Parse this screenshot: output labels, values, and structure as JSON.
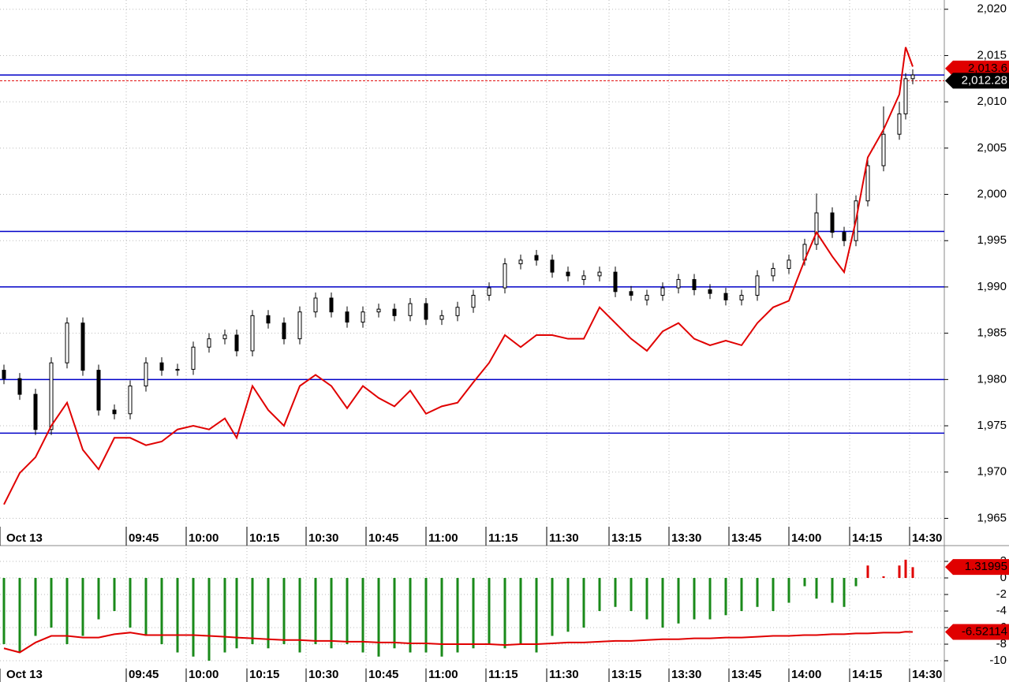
{
  "chart_data": [
    {
      "type": "candlestick",
      "x": [
        1,
        5,
        9,
        13,
        17,
        21,
        25,
        29,
        33,
        37,
        41,
        45,
        49,
        53,
        57,
        60,
        64,
        68,
        72,
        76,
        80,
        84,
        88,
        92,
        96,
        100,
        104,
        108,
        112,
        116,
        120,
        124,
        128,
        132,
        136,
        140,
        144,
        148,
        152,
        156,
        160,
        164,
        168,
        172,
        176,
        180,
        184,
        188,
        192,
        196,
        200,
        204,
        207,
        211,
        214,
        217,
        220,
        224,
        228,
        229.6,
        231.4
      ],
      "open": [
        1981.0,
        1980.1,
        1978.4,
        1974.6,
        1981.8,
        1986.1,
        1981.0,
        1976.7,
        1976.3,
        1979.3,
        1981.8,
        1981.0,
        1981.1,
        1983.5,
        1984.4,
        1984.8,
        1983.1,
        1986.9,
        1986.1,
        1984.4,
        1987.3,
        1988.8,
        1987.3,
        1986.2,
        1987.3,
        1987.6,
        1986.9,
        1988.2,
        1986.5,
        1986.9,
        1987.8,
        1989.1,
        1989.9,
        1992.5,
        1993.4,
        1992.9,
        1991.6,
        1990.8,
        1991.2,
        1991.6,
        1989.5,
        1988.6,
        1989.1,
        1989.9,
        1990.8,
        1989.7,
        1989.3,
        1988.6,
        1989.1,
        1991.2,
        1992.0,
        1992.9,
        1994.6,
        1998.0,
        1995.9,
        1995.0,
        1999.3,
        2003.1,
        2006.5,
        2008.7,
        2012.5
      ],
      "high": [
        1981.6,
        1980.7,
        1979.0,
        1982.4,
        1986.7,
        1986.7,
        1981.6,
        1977.3,
        1979.9,
        1982.4,
        1982.4,
        1981.7,
        1984.1,
        1985.0,
        1985.4,
        1985.4,
        1987.5,
        1987.5,
        1986.7,
        1987.9,
        1989.4,
        1989.4,
        1987.9,
        1987.9,
        1988.2,
        1988.2,
        1988.8,
        1988.8,
        1987.5,
        1988.4,
        1989.7,
        1990.5,
        1993.1,
        1993.5,
        1994.0,
        1993.5,
        1992.2,
        1991.8,
        1992.2,
        1992.2,
        1990.1,
        1989.7,
        1990.5,
        1991.4,
        1991.4,
        1990.3,
        1989.9,
        1989.7,
        1991.8,
        1992.6,
        1993.5,
        1995.2,
        2000.1,
        1998.6,
        1996.5,
        1999.9,
        2003.7,
        2009.5,
        2010.0,
        2013.1,
        2013.5
      ],
      "low": [
        1979.5,
        1977.8,
        1974.0,
        1974.0,
        1981.2,
        1980.4,
        1976.1,
        1975.7,
        1975.7,
        1978.7,
        1980.4,
        1980.4,
        1980.5,
        1982.9,
        1983.8,
        1982.5,
        1982.5,
        1985.5,
        1983.8,
        1983.8,
        1986.7,
        1986.7,
        1985.6,
        1985.6,
        1986.7,
        1986.3,
        1986.3,
        1985.9,
        1985.9,
        1986.3,
        1987.2,
        1988.5,
        1989.3,
        1991.9,
        1992.3,
        1991.0,
        1990.6,
        1990.2,
        1990.6,
        1988.9,
        1988.5,
        1988.0,
        1988.5,
        1989.3,
        1989.1,
        1988.7,
        1988.0,
        1988.0,
        1988.5,
        1990.6,
        1991.4,
        1992.3,
        1994.0,
        1995.3,
        1994.4,
        1994.4,
        1998.7,
        2002.5,
        2005.9,
        2008.1,
        2011.9
      ],
      "close": [
        1980.1,
        1978.4,
        1974.6,
        1981.8,
        1986.1,
        1981.0,
        1976.7,
        1976.3,
        1979.3,
        1981.8,
        1981.0,
        1981.1,
        1983.5,
        1984.4,
        1984.8,
        1983.1,
        1986.9,
        1986.1,
        1984.4,
        1987.3,
        1988.8,
        1987.3,
        1986.2,
        1987.3,
        1987.6,
        1986.9,
        1988.2,
        1986.5,
        1986.9,
        1987.8,
        1989.1,
        1989.9,
        1992.5,
        1992.9,
        1992.9,
        1991.6,
        1991.2,
        1991.2,
        1991.6,
        1989.5,
        1989.1,
        1989.1,
        1989.9,
        1990.8,
        1989.7,
        1989.3,
        1988.6,
        1989.1,
        1991.2,
        1992.0,
        1992.9,
        1994.6,
        1998.0,
        1995.9,
        1995.0,
        1999.3,
        2003.1,
        2006.5,
        2008.7,
        2012.5,
        2012.9
      ],
      "series": [
        {
          "type": "line",
          "color": "#e00000",
          "values": [
            1966.5,
            1969.9,
            1971.6,
            1975.0,
            1977.5,
            1972.4,
            1970.3,
            1973.7,
            1973.7,
            1972.9,
            1973.3,
            1974.6,
            1975.0,
            1974.6,
            1975.8,
            1973.7,
            1979.3,
            1976.7,
            1975.0,
            1979.3,
            1980.5,
            1979.3,
            1976.9,
            1979.3,
            1978.0,
            1977.1,
            1978.8,
            1976.3,
            1977.1,
            1977.5,
            1979.7,
            1981.8,
            1984.8,
            1983.5,
            1984.8,
            1984.8,
            1984.4,
            1984.4,
            1987.8,
            1986.1,
            1984.4,
            1983.1,
            1985.2,
            1986.1,
            1984.4,
            1983.7,
            1984.2,
            1983.7,
            1986.1,
            1987.8,
            1988.5,
            1992.9,
            1995.9,
            1993.3,
            1991.6,
            1997.2,
            2004.0,
            2007.0,
            2010.8,
            2015.9,
            2013.8
          ]
        }
      ],
      "hlines": [
        2012.9,
        1996,
        1990,
        1980,
        1974.2
      ],
      "hline_color": "#0000c8",
      "tags": [
        {
          "value": 2013.6,
          "label": "2,013.6",
          "color": "#e00000"
        },
        {
          "value": 2012.28,
          "label": "2,012.28",
          "color": "#000000",
          "line": "dashed"
        }
      ],
      "xlim": [
        0,
        239.4
      ],
      "xticks": [
        {
          "value": 0,
          "label": "Oct 13"
        },
        {
          "value": 32,
          "label": "09:45"
        },
        {
          "value": 47.2,
          "label": "10:00"
        },
        {
          "value": 62.6,
          "label": "10:15"
        },
        {
          "value": 77.6,
          "label": "10:30"
        },
        {
          "value": 92.8,
          "label": "10:45"
        },
        {
          "value": 108,
          "label": "11:00"
        },
        {
          "value": 123.2,
          "label": "11:15"
        },
        {
          "value": 138.6,
          "label": "11:30"
        },
        {
          "value": 154.4,
          "label": "13:15"
        },
        {
          "value": 169.6,
          "label": "13:30"
        },
        {
          "value": 184.8,
          "label": "13:45"
        },
        {
          "value": 200,
          "label": "14:00"
        },
        {
          "value": 215.4,
          "label": "14:15"
        },
        {
          "value": 230.6,
          "label": "14:30"
        }
      ],
      "ylim": [
        1964.1,
        2021.0
      ],
      "yticks": [
        {
          "value": 1965,
          "label": "1,965"
        },
        {
          "value": 1970,
          "label": "1,970"
        },
        {
          "value": 1975,
          "label": "1,975"
        },
        {
          "value": 1980,
          "label": "1,980"
        },
        {
          "value": 1985,
          "label": "1,985"
        },
        {
          "value": 1990,
          "label": "1,990"
        },
        {
          "value": 1995,
          "label": "1,995"
        },
        {
          "value": 2000,
          "label": "2,000"
        },
        {
          "value": 2005,
          "label": "2,005"
        },
        {
          "value": 2010,
          "label": "2,010"
        },
        {
          "value": 2015,
          "label": "2,015"
        },
        {
          "value": 2020,
          "label": "2,020"
        }
      ],
      "grid": true
    },
    {
      "type": "histogram-line",
      "x": [
        1,
        5,
        9,
        13,
        17,
        21,
        25,
        29,
        33,
        37,
        41,
        45,
        49,
        53,
        57,
        60,
        64,
        68,
        72,
        76,
        80,
        84,
        88,
        92,
        96,
        100,
        104,
        108,
        112,
        116,
        120,
        124,
        128,
        132,
        136,
        140,
        144,
        148,
        152,
        156,
        160,
        164,
        168,
        172,
        176,
        180,
        184,
        188,
        192,
        196,
        200,
        204,
        207,
        211,
        214,
        217,
        220,
        224,
        228,
        229.6,
        231.4
      ],
      "values": [
        -8,
        -9,
        -7,
        -6,
        -8,
        -7,
        -5,
        -4,
        -6,
        -7,
        -8,
        -9,
        -9.5,
        -10,
        -9,
        -8.5,
        -8,
        -8.5,
        -8,
        -9,
        -8,
        -8.5,
        -8,
        -9,
        -9.5,
        -8.5,
        -9,
        -9,
        -9.5,
        -9,
        -8.5,
        -8,
        -8.5,
        -8,
        -9,
        -7,
        -6.5,
        -6,
        -4,
        -3.5,
        -4,
        -5,
        -6,
        -5.5,
        -5,
        -5,
        -4.5,
        -4,
        -3.5,
        -4,
        -3,
        -1,
        -2.5,
        -3,
        -3.5,
        -1,
        1.5,
        0.2,
        1.5,
        2.2,
        1.3
      ],
      "up_color": "#e00000",
      "down_color": "#1a8a1a",
      "series": [
        {
          "type": "line",
          "color": "#e00000",
          "values": [
            -8.5,
            -9.0,
            -7.8,
            -7.0,
            -7.0,
            -7.2,
            -7.2,
            -6.8,
            -6.6,
            -6.9,
            -6.9,
            -6.9,
            -6.9,
            -7.0,
            -7.1,
            -7.2,
            -7.3,
            -7.4,
            -7.5,
            -7.5,
            -7.6,
            -7.6,
            -7.7,
            -7.7,
            -7.8,
            -7.8,
            -7.9,
            -7.9,
            -8.0,
            -8.0,
            -8.0,
            -8.0,
            -8.1,
            -8.0,
            -8.0,
            -7.9,
            -7.8,
            -7.8,
            -7.7,
            -7.6,
            -7.6,
            -7.5,
            -7.4,
            -7.4,
            -7.3,
            -7.3,
            -7.2,
            -7.2,
            -7.1,
            -7.0,
            -7.0,
            -6.9,
            -6.9,
            -6.8,
            -6.8,
            -6.7,
            -6.7,
            -6.6,
            -6.6,
            -6.5,
            -6.52
          ]
        }
      ],
      "tags": [
        {
          "value": 1.31995,
          "color": "#e00000"
        },
        {
          "value": -6.52114,
          "color": "#e00000"
        }
      ],
      "xlim": [
        0,
        239.4
      ],
      "xticks": [
        {
          "value": 0,
          "label": "Oct 13"
        },
        {
          "value": 32,
          "label": "09:45"
        },
        {
          "value": 47.2,
          "label": "10:00"
        },
        {
          "value": 62.6,
          "label": "10:15"
        },
        {
          "value": 77.6,
          "label": "10:30"
        },
        {
          "value": 92.8,
          "label": "10:45"
        },
        {
          "value": 108,
          "label": "11:00"
        },
        {
          "value": 123.2,
          "label": "11:15"
        },
        {
          "value": 138.6,
          "label": "11:30"
        },
        {
          "value": 154.4,
          "label": "13:15"
        },
        {
          "value": 169.6,
          "label": "13:30"
        },
        {
          "value": 184.8,
          "label": "13:45"
        },
        {
          "value": 200,
          "label": "14:00"
        },
        {
          "value": 215.4,
          "label": "14:15"
        },
        {
          "value": 230.6,
          "label": "14:30"
        }
      ],
      "ylim": [
        -10.95,
        3.62
      ],
      "yticks": [
        2,
        0,
        -2,
        -4,
        -6,
        -8,
        -10
      ],
      "grid": true
    }
  ]
}
